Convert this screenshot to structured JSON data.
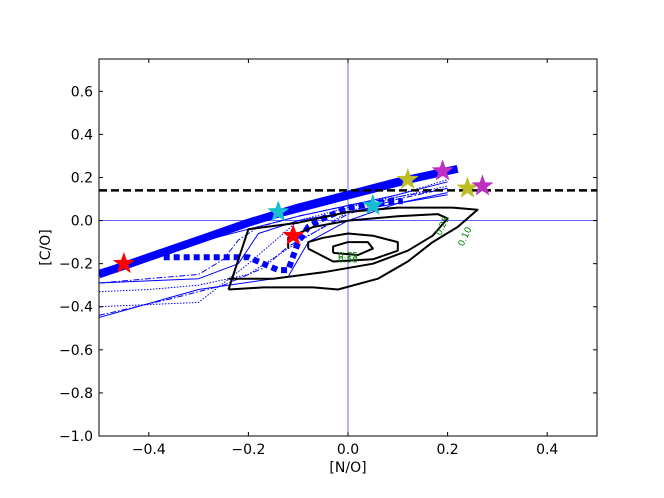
{
  "chart_data": {
    "type": "line",
    "title": "",
    "xlabel": "[N/O]",
    "ylabel": "[C/O]",
    "xlim": [
      -0.5,
      0.5
    ],
    "ylim": [
      -1.0,
      0.75
    ],
    "xticks": [
      "−0.4",
      "−0.2",
      "0.0",
      "0.2",
      "0.4"
    ],
    "xtick_values": [
      -0.4,
      -0.2,
      0.0,
      0.2,
      0.4
    ],
    "yticks": [
      "−1.0",
      "−0.8",
      "−0.6",
      "−0.4",
      "−0.2",
      "0.0",
      "0.2",
      "0.4",
      "0.6"
    ],
    "ytick_values": [
      -1.0,
      -0.8,
      -0.6,
      -0.4,
      -0.2,
      0.0,
      0.2,
      0.4,
      0.6
    ],
    "reference_lines": {
      "x": 0.0,
      "y": 0.0,
      "dashed_y": 0.14
    },
    "colors": {
      "model": "#0000ff",
      "contour": "#000000",
      "contour_label": "#008000",
      "refline": "#0000ff"
    },
    "series": [
      {
        "style": "thick",
        "x": [
          -0.5,
          -0.4,
          -0.3,
          -0.2,
          -0.1,
          0.0,
          0.1,
          0.22
        ],
        "y": [
          -0.25,
          -0.17,
          -0.09,
          -0.01,
          0.06,
          0.12,
          0.18,
          0.24
        ]
      },
      {
        "style": "thin",
        "x": [
          -0.5,
          -0.4,
          -0.3,
          -0.2,
          -0.1,
          0.0,
          0.1,
          0.2
        ],
        "y": [
          -0.24,
          -0.16,
          -0.09,
          -0.02,
          0.04,
          0.1,
          0.16,
          0.22
        ]
      },
      {
        "style": "thin",
        "x": [
          -0.5,
          -0.4,
          -0.3,
          -0.2,
          -0.1,
          0.0,
          0.1,
          0.2
        ],
        "y": [
          -0.23,
          -0.16,
          -0.1,
          -0.04,
          0.02,
          0.07,
          0.12,
          0.18
        ]
      },
      {
        "style": "dashdot",
        "x": [
          -0.5,
          -0.3,
          -0.25,
          -0.22,
          -0.18,
          -0.1,
          0.0,
          0.1,
          0.2
        ],
        "y": [
          -0.29,
          -0.25,
          -0.18,
          -0.09,
          -0.03,
          0.02,
          0.07,
          0.11,
          0.15
        ]
      },
      {
        "style": "thin",
        "x": [
          -0.5,
          -0.3,
          -0.22,
          -0.18,
          -0.1,
          0.0,
          0.1,
          0.2
        ],
        "y": [
          -0.29,
          -0.27,
          -0.2,
          -0.06,
          0.0,
          0.04,
          0.08,
          0.12
        ]
      },
      {
        "style": "dotted",
        "x": [
          -0.5,
          -0.3,
          -0.2,
          -0.1,
          0.0,
          0.1,
          0.2
        ],
        "y": [
          -0.4,
          -0.38,
          -0.2,
          0.0,
          0.06,
          0.12,
          0.19
        ]
      },
      {
        "style": "dashdot",
        "x": [
          -0.5,
          -0.35,
          -0.25,
          -0.17,
          -0.12,
          0.0,
          0.1,
          0.2
        ],
        "y": [
          -0.44,
          -0.36,
          -0.3,
          -0.22,
          -0.12,
          0.03,
          0.1,
          0.15
        ]
      },
      {
        "style": "thin",
        "x": [
          -0.5,
          -0.3,
          -0.12,
          -0.08,
          0.0,
          0.1,
          0.2
        ],
        "y": [
          -0.45,
          -0.32,
          -0.26,
          -0.1,
          0.0,
          0.08,
          0.13
        ]
      },
      {
        "style": "dotted",
        "x": [
          -0.5,
          -0.4,
          -0.3,
          -0.2,
          -0.1,
          0.0,
          0.1,
          0.2
        ],
        "y": [
          -0.33,
          -0.32,
          -0.3,
          -0.25,
          -0.1,
          0.04,
          0.11,
          0.16
        ]
      },
      {
        "style": "thickdot",
        "x": [
          -0.37,
          -0.32,
          -0.27,
          -0.23,
          -0.2,
          -0.17,
          -0.14,
          -0.12,
          -0.1,
          -0.08,
          -0.05,
          -0.02,
          0.0,
          0.03,
          0.06,
          0.09,
          0.11
        ],
        "y": [
          -0.17,
          -0.17,
          -0.17,
          -0.17,
          -0.17,
          -0.2,
          -0.23,
          -0.23,
          -0.1,
          -0.03,
          0.01,
          0.04,
          0.06,
          0.07,
          0.08,
          0.09,
          0.09
        ]
      }
    ],
    "contours": [
      {
        "label": "0.10",
        "x": [
          -0.24,
          -0.17,
          -0.12,
          -0.07,
          -0.02,
          0.06,
          0.12,
          0.17,
          0.22,
          0.26,
          0.21,
          0.1,
          0.0,
          -0.1,
          -0.2,
          -0.24
        ],
        "y": [
          -0.32,
          -0.31,
          -0.31,
          -0.31,
          -0.32,
          -0.27,
          -0.19,
          -0.1,
          -0.03,
          0.05,
          0.06,
          0.06,
          0.04,
          -0.01,
          -0.04,
          -0.32
        ]
      },
      {
        "label": "0.25",
        "x": [
          -0.24,
          -0.15,
          -0.05,
          0.05,
          0.12,
          0.17,
          0.2,
          0.18,
          0.1,
          0.0,
          -0.07,
          -0.12,
          -0.12
        ],
        "y": [
          -0.27,
          -0.27,
          -0.24,
          -0.2,
          -0.14,
          -0.07,
          0.01,
          0.03,
          0.02,
          0.0,
          -0.03,
          -0.08,
          -0.13
        ]
      },
      {
        "label": "0.50",
        "x": [
          -0.08,
          -0.03,
          0.05,
          0.1,
          0.1,
          0.05,
          0.0,
          -0.05,
          -0.08,
          -0.08
        ],
        "y": [
          -0.13,
          -0.19,
          -0.18,
          -0.14,
          -0.1,
          -0.07,
          -0.06,
          -0.08,
          -0.1,
          -0.13
        ]
      },
      {
        "label": "0.75",
        "x": [
          -0.03,
          0.02,
          0.05,
          0.04,
          0.0,
          -0.03,
          -0.03
        ],
        "y": [
          -0.15,
          -0.16,
          -0.13,
          -0.1,
          -0.1,
          -0.12,
          -0.15
        ]
      }
    ],
    "contour_label_positions": [
      {
        "text": "0.10",
        "x": 0.24,
        "y": -0.08
      },
      {
        "text": "0.25",
        "x": 0.195,
        "y": -0.03
      },
      {
        "text": "0.75",
        "x": 0.0,
        "y": -0.175
      },
      {
        "text": "0.50",
        "x": 0.0,
        "y": -0.195
      }
    ],
    "stars": [
      {
        "x": -0.45,
        "y": -0.2,
        "color": "#ff0000"
      },
      {
        "x": -0.11,
        "y": -0.07,
        "color": "#ff0000"
      },
      {
        "x": -0.14,
        "y": 0.04,
        "color": "#17becf"
      },
      {
        "x": 0.05,
        "y": 0.07,
        "color": "#17becf"
      },
      {
        "x": 0.12,
        "y": 0.19,
        "color": "#bcbd22"
      },
      {
        "x": 0.24,
        "y": 0.15,
        "color": "#bcbd22"
      },
      {
        "x": 0.19,
        "y": 0.23,
        "color": "#c030c0"
      },
      {
        "x": 0.27,
        "y": 0.16,
        "color": "#c030c0"
      }
    ],
    "grid": false,
    "legend": "none"
  }
}
